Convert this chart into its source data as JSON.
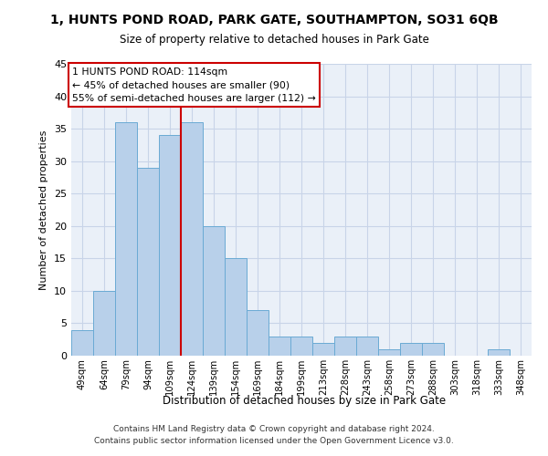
{
  "title": "1, HUNTS POND ROAD, PARK GATE, SOUTHAMPTON, SO31 6QB",
  "subtitle": "Size of property relative to detached houses in Park Gate",
  "xlabel": "Distribution of detached houses by size in Park Gate",
  "ylabel": "Number of detached properties",
  "categories": [
    "49sqm",
    "64sqm",
    "79sqm",
    "94sqm",
    "109sqm",
    "124sqm",
    "139sqm",
    "154sqm",
    "169sqm",
    "184sqm",
    "199sqm",
    "213sqm",
    "228sqm",
    "243sqm",
    "258sqm",
    "273sqm",
    "288sqm",
    "303sqm",
    "318sqm",
    "333sqm",
    "348sqm"
  ],
  "values": [
    4,
    10,
    36,
    29,
    34,
    36,
    20,
    15,
    7,
    3,
    3,
    2,
    3,
    3,
    1,
    2,
    2,
    0,
    0,
    1,
    0
  ],
  "bar_color": "#b8d0ea",
  "bar_edge_color": "#6aaad4",
  "property_line_x": 4.5,
  "annotation_line1": "1 HUNTS POND ROAD: 114sqm",
  "annotation_line2": "← 45% of detached houses are smaller (90)",
  "annotation_line3": "55% of semi-detached houses are larger (112) →",
  "annotation_box_edge_color": "#cc0000",
  "property_line_color": "#cc0000",
  "grid_color": "#c8d4e8",
  "background_color": "#eaf0f8",
  "footer_line1": "Contains HM Land Registry data © Crown copyright and database right 2024.",
  "footer_line2": "Contains public sector information licensed under the Open Government Licence v3.0.",
  "ylim_max": 45,
  "yticks": [
    0,
    5,
    10,
    15,
    20,
    25,
    30,
    35,
    40,
    45
  ]
}
